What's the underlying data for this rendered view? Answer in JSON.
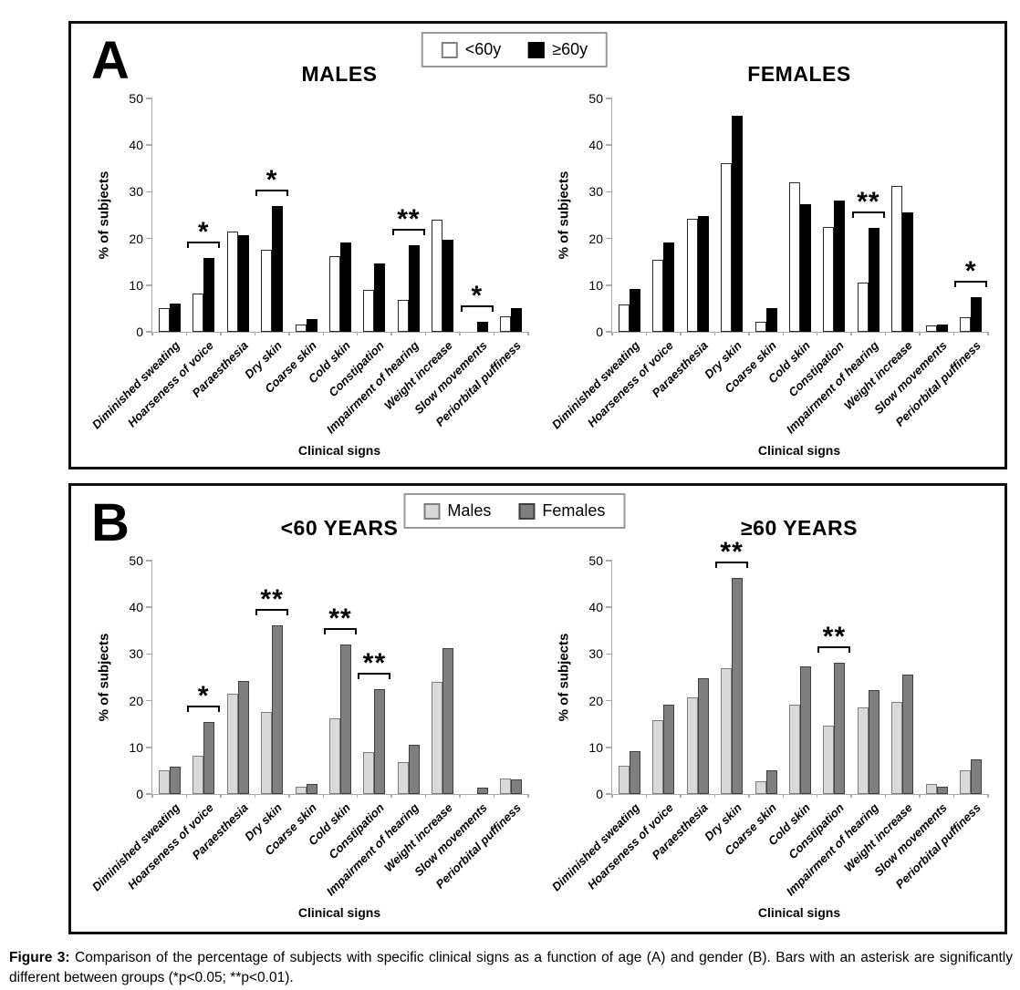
{
  "figure": {
    "panels": {
      "a": {
        "label": "A"
      },
      "b": {
        "label": "B"
      }
    }
  },
  "caption": {
    "label": "Figure 3:",
    "text": " Comparison of the percentage of subjects with specific clinical signs as a function of age (A) and gender (B). Bars with an asterisk are significantly different between groups (*p<0.05; **p<0.01)."
  },
  "chart_data": [
    {
      "panel": "A",
      "type": "bar",
      "title": "MALES",
      "ylabel": "% of subjects",
      "xlabel": "Clinical signs",
      "ylim": [
        0,
        50
      ],
      "yticks": [
        0,
        10,
        20,
        30,
        40,
        50
      ],
      "grid": false,
      "legend_position": "top-center-of-panel",
      "categories": [
        "Diminished sweating",
        "Hoarseness of voice",
        "Paraesthesia",
        "Dry skin",
        "Coarse skin",
        "Cold skin",
        "Constipation",
        "Impairment of hearing",
        "Weight increase",
        "Slow movements",
        "Periorbital puffiness"
      ],
      "series": [
        {
          "name": "<60y",
          "fill": "#ffffff",
          "border": "#2b2b2b",
          "values": [
            5.0,
            8.3,
            21.5,
            17.5,
            1.5,
            16.2,
            8.9,
            6.9,
            24.0,
            0,
            3.4
          ]
        },
        {
          "name": "≥60y",
          "fill": "#000000",
          "border": "#000000",
          "values": [
            6.1,
            15.8,
            20.8,
            27.0,
            2.8,
            19.1,
            14.7,
            18.6,
            19.7,
            2.2,
            5.1
          ]
        }
      ],
      "annotations": [
        {
          "index": 1,
          "category": "Hoarseness of voice",
          "sig": "*"
        },
        {
          "index": 3,
          "category": "Dry skin",
          "sig": "*"
        },
        {
          "index": 7,
          "category": "Impairment of hearing",
          "sig": "**"
        },
        {
          "index": 9,
          "category": "Slow movements",
          "sig": "*"
        }
      ]
    },
    {
      "panel": "A",
      "type": "bar",
      "title": "FEMALES",
      "ylabel": "% of subjects",
      "xlabel": "Clinical signs",
      "ylim": [
        0,
        50
      ],
      "yticks": [
        0,
        10,
        20,
        30,
        40,
        50
      ],
      "grid": false,
      "categories": [
        "Diminished sweating",
        "Hoarseness of voice",
        "Paraesthesia",
        "Dry skin",
        "Coarse skin",
        "Cold skin",
        "Constipation",
        "Impairment of hearing",
        "Weight increase",
        "Slow movements",
        "Periorbital puffiness"
      ],
      "series": [
        {
          "name": "<60y",
          "fill": "#ffffff",
          "border": "#2b2b2b",
          "values": [
            5.9,
            15.5,
            24.3,
            36.2,
            2.1,
            32.1,
            22.5,
            10.5,
            31.3,
            1.3,
            3.1
          ]
        },
        {
          "name": "≥60y",
          "fill": "#000000",
          "border": "#000000",
          "values": [
            9.1,
            19.1,
            24.8,
            46.3,
            5.0,
            27.3,
            28.1,
            22.3,
            25.6,
            1.6,
            7.4
          ]
        }
      ],
      "annotations": [
        {
          "index": 7,
          "category": "Impairment of hearing",
          "sig": "**"
        },
        {
          "index": 10,
          "category": "Periorbital puffiness",
          "sig": "*"
        }
      ]
    },
    {
      "panel": "B",
      "type": "bar",
      "title": "<60 YEARS",
      "ylabel": "% of subjects",
      "xlabel": "Clinical signs",
      "ylim": [
        0,
        50
      ],
      "yticks": [
        0,
        10,
        20,
        30,
        40,
        50
      ],
      "grid": false,
      "categories": [
        "Diminished sweating",
        "Hoarseness of voice",
        "Paraesthesia",
        "Dry skin",
        "Coarse skin",
        "Cold skin",
        "Constipation",
        "Impairment of hearing",
        "Weight increase",
        "Slow movements",
        "Periorbital puffiness"
      ],
      "series": [
        {
          "name": "Males",
          "fill": "#d9d9d9",
          "border": "#7f7f7f",
          "values": [
            5.0,
            8.3,
            21.5,
            17.5,
            1.5,
            16.2,
            8.9,
            6.9,
            24.0,
            0,
            3.4
          ]
        },
        {
          "name": "Females",
          "fill": "#7f7f7f",
          "border": "#3f3f3f",
          "values": [
            5.9,
            15.5,
            24.3,
            36.2,
            2.1,
            32.1,
            22.5,
            10.5,
            31.3,
            1.3,
            3.1
          ]
        }
      ],
      "annotations": [
        {
          "index": 1,
          "category": "Hoarseness of voice",
          "sig": "*"
        },
        {
          "index": 3,
          "category": "Dry skin",
          "sig": "**"
        },
        {
          "index": 5,
          "category": "Cold skin",
          "sig": "**"
        },
        {
          "index": 6,
          "category": "Constipation",
          "sig": "**"
        }
      ]
    },
    {
      "panel": "B",
      "type": "bar",
      "title": "≥60 YEARS",
      "ylabel": "% of subjects",
      "xlabel": "Clinical signs",
      "ylim": [
        0,
        50
      ],
      "yticks": [
        0,
        10,
        20,
        30,
        40,
        50
      ],
      "grid": false,
      "categories": [
        "Diminished sweating",
        "Hoarseness of voice",
        "Paraesthesia",
        "Dry skin",
        "Coarse skin",
        "Cold skin",
        "Constipation",
        "Impairment of hearing",
        "Weight increase",
        "Slow movements",
        "Periorbital puffiness"
      ],
      "series": [
        {
          "name": "Males",
          "fill": "#d9d9d9",
          "border": "#7f7f7f",
          "values": [
            6.1,
            15.8,
            20.8,
            27.0,
            2.8,
            19.1,
            14.7,
            18.6,
            19.7,
            2.2,
            5.1
          ]
        },
        {
          "name": "Females",
          "fill": "#7f7f7f",
          "border": "#3f3f3f",
          "values": [
            9.1,
            19.1,
            24.8,
            46.3,
            5.0,
            27.3,
            28.1,
            22.3,
            25.6,
            1.6,
            7.4
          ]
        }
      ],
      "annotations": [
        {
          "index": 3,
          "category": "Dry skin",
          "sig": "**"
        },
        {
          "index": 6,
          "category": "Constipation",
          "sig": "**"
        }
      ]
    }
  ]
}
